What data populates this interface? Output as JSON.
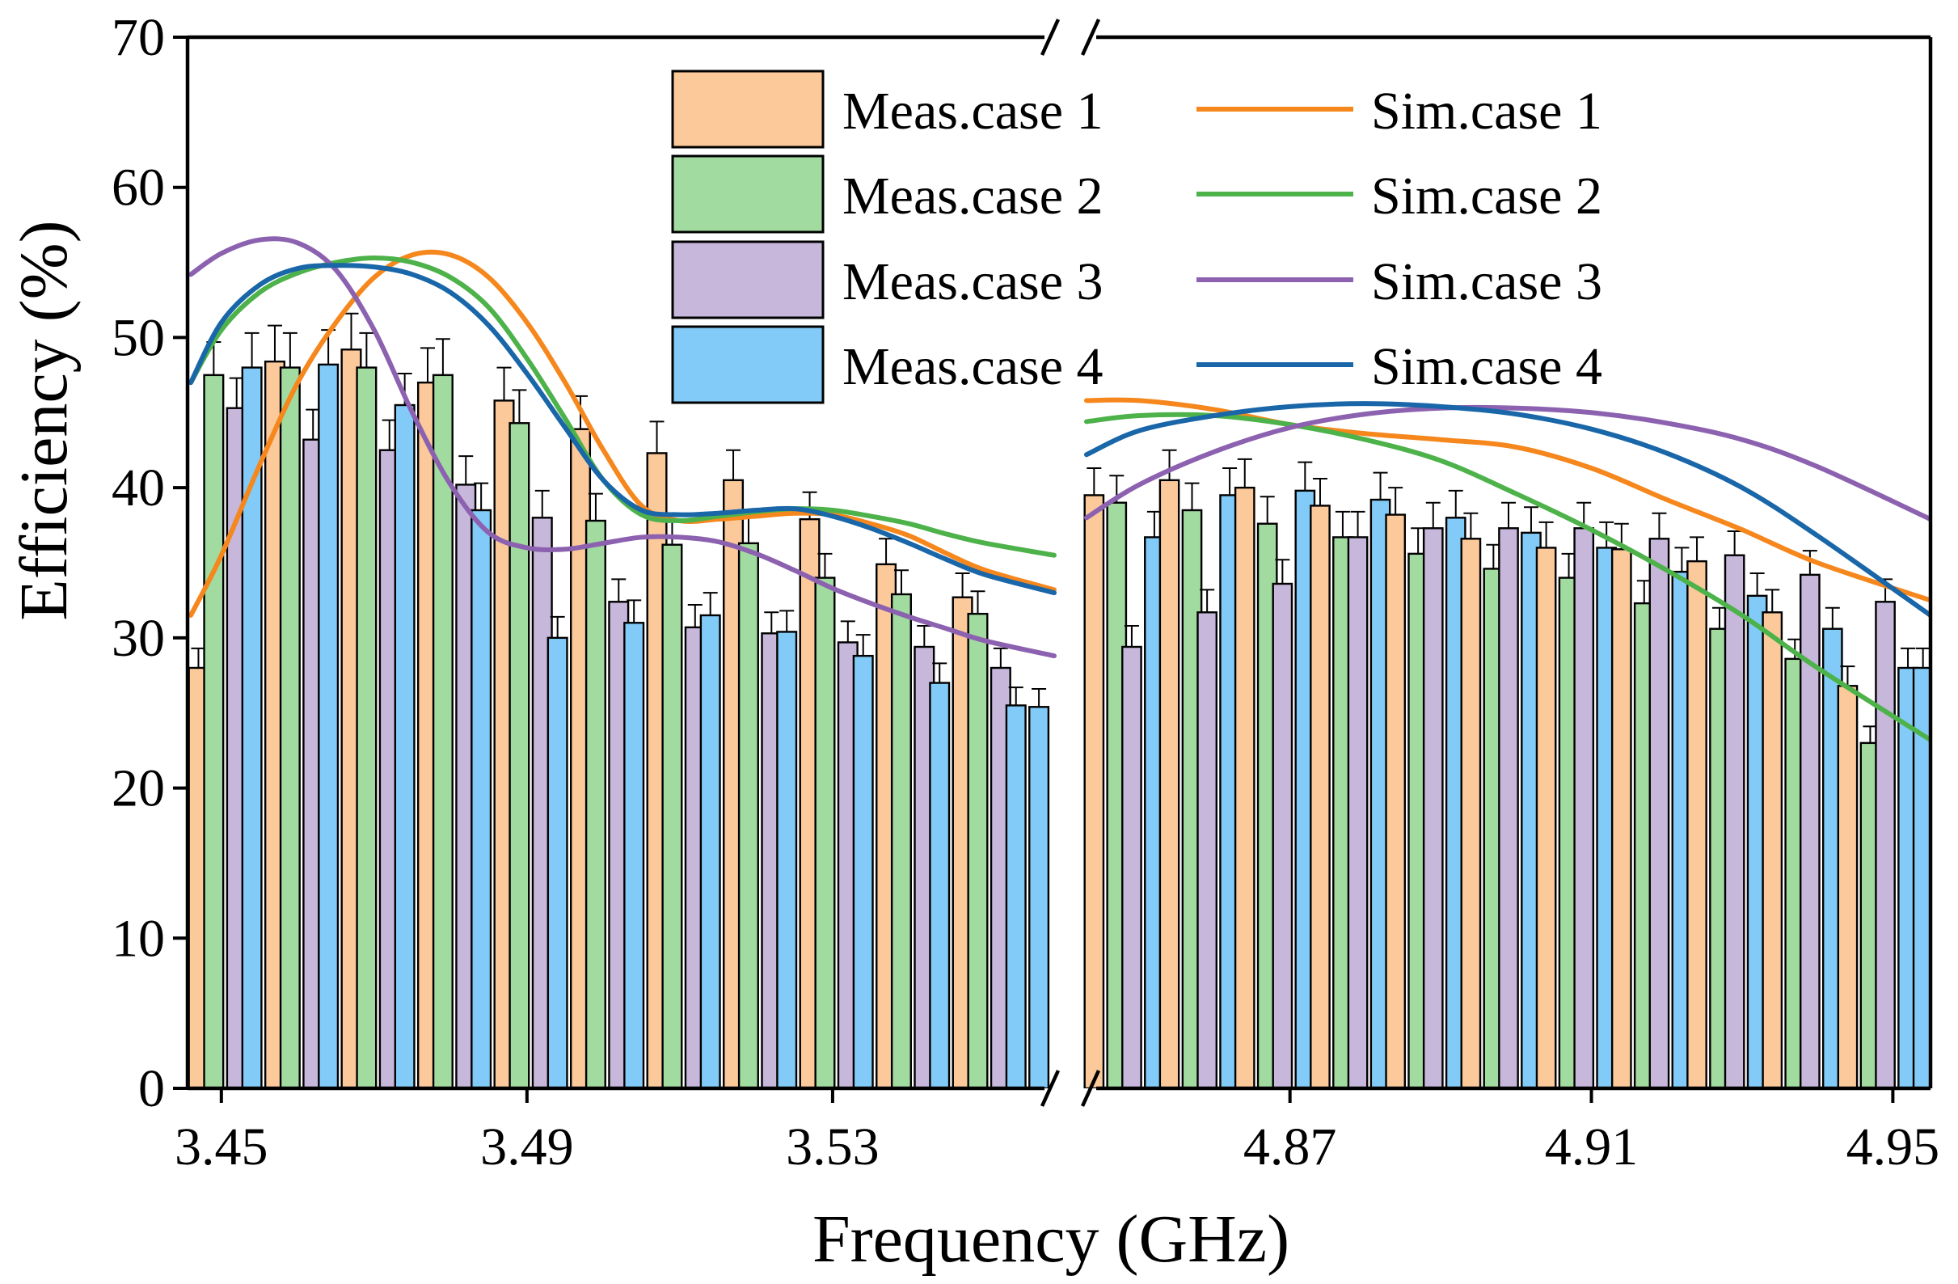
{
  "chart_data": {
    "type": "bar",
    "xlabel": "Frequency (GHz)",
    "ylabel": "Efficiency (%)",
    "ylim": [
      0,
      70
    ],
    "yticks": [
      0,
      10,
      20,
      30,
      40,
      50,
      60,
      70
    ],
    "ytick_labels": [
      "0",
      "10",
      "20",
      "30",
      "40",
      "50",
      "60",
      "70"
    ],
    "grid": false,
    "legend_position": "top-center",
    "axis_break": true,
    "panels": [
      {
        "name": "low-band",
        "xlim": [
          3.446,
          3.559
        ],
        "xticks": [
          3.45,
          3.49,
          3.53
        ],
        "xtick_labels": [
          "3.45",
          "3.49",
          "3.53"
        ],
        "bar_width": 0.0025,
        "bar_freqs": [
          3.447,
          3.449,
          3.452,
          3.454,
          3.457,
          3.459,
          3.462,
          3.464,
          3.467,
          3.469,
          3.472,
          3.474,
          3.477,
          3.479,
          3.482,
          3.484,
          3.487,
          3.489,
          3.492,
          3.494,
          3.497,
          3.499,
          3.502,
          3.504,
          3.507,
          3.509,
          3.512,
          3.514,
          3.517,
          3.519,
          3.522,
          3.524,
          3.527,
          3.529,
          3.532,
          3.534,
          3.537,
          3.539,
          3.542,
          3.544,
          3.547,
          3.549,
          3.552,
          3.554,
          3.557
        ],
        "bar_case": [
          1,
          2,
          3,
          4,
          1,
          2,
          3,
          4,
          1,
          2,
          3,
          4,
          1,
          2,
          3,
          4,
          1,
          2,
          3,
          4,
          1,
          2,
          3,
          4,
          1,
          2,
          3,
          4,
          1,
          2,
          3,
          4,
          1,
          2,
          3,
          4,
          1,
          2,
          3,
          4,
          1,
          2,
          3,
          4,
          4
        ],
        "bar_values": [
          28,
          47.5,
          45.3,
          48,
          48.4,
          48,
          43.2,
          48.2,
          49.2,
          48,
          42.5,
          45.5,
          47,
          47.5,
          40.2,
          38.5,
          45.8,
          44.3,
          38,
          30,
          43.9,
          37.8,
          32.4,
          31,
          42.3,
          36.2,
          30.7,
          31.5,
          40.5,
          36.3,
          30.3,
          30.4,
          37.9,
          34,
          29.7,
          28.8,
          34.9,
          32.9,
          29.4,
          27,
          32.7,
          31.6,
          28,
          25.5,
          25.4
        ],
        "error_bars": [
          1.3,
          2.2,
          2.0,
          2.3,
          2.4,
          2.3,
          2.0,
          2.3,
          2.4,
          2.3,
          2.0,
          2.1,
          2.3,
          2.4,
          1.9,
          1.8,
          2.2,
          2.2,
          1.8,
          1.4,
          2.2,
          1.8,
          1.5,
          1.5,
          2.1,
          1.7,
          1.5,
          1.5,
          2.0,
          1.7,
          1.4,
          1.4,
          1.8,
          1.6,
          1.4,
          1.4,
          1.7,
          1.6,
          1.4,
          1.3,
          1.6,
          1.5,
          1.3,
          1.2,
          1.2
        ],
        "sim_x": [
          3.446,
          3.45,
          3.455,
          3.46,
          3.465,
          3.47,
          3.475,
          3.48,
          3.485,
          3.49,
          3.495,
          3.5,
          3.505,
          3.51,
          3.515,
          3.52,
          3.525,
          3.53,
          3.535,
          3.54,
          3.545,
          3.55,
          3.559
        ],
        "sim_series": [
          {
            "case": 1,
            "values": [
              31.5,
              35.5,
              41.5,
              47,
              51,
              54,
              55.5,
              55.5,
              54,
              51,
              47,
              42.5,
              38.8,
              37.8,
              37.9,
              38.1,
              38.3,
              38.2,
              37.6,
              36.8,
              35.6,
              34.5,
              33.2
            ]
          },
          {
            "case": 2,
            "values": [
              47,
              50.5,
              53,
              54.3,
              55,
              55.3,
              55,
              54,
              52,
              48.6,
              44.6,
              40.5,
              38.2,
              37.8,
              38.1,
              38.4,
              38.6,
              38.5,
              38.1,
              37.6,
              36.9,
              36.3,
              35.5
            ]
          },
          {
            "case": 3,
            "values": [
              54.2,
              55.6,
              56.5,
              56.3,
              54.5,
              50.5,
              45,
              40.2,
              37,
              36,
              35.9,
              36.3,
              36.7,
              36.7,
              36.4,
              35.6,
              34.5,
              33.3,
              32.3,
              31.4,
              30.6,
              29.8,
              28.8
            ]
          },
          {
            "case": 4,
            "values": [
              47,
              51,
              53.5,
              54.6,
              54.8,
              54.7,
              54.2,
              53,
              50.8,
              47.6,
              44,
              40.5,
              38.5,
              38.2,
              38.3,
              38.5,
              38.6,
              38.1,
              37.3,
              36.3,
              35.2,
              34.2,
              33
            ]
          }
        ]
      },
      {
        "name": "high-band",
        "xlim": [
          4.843,
          4.955
        ],
        "xticks": [
          4.87,
          4.91,
          4.95
        ],
        "xtick_labels": [
          "4.87",
          "4.91",
          "4.95"
        ],
        "bar_width": 0.0025,
        "bar_freqs": [
          4.844,
          4.847,
          4.849,
          4.852,
          4.854,
          4.857,
          4.859,
          4.862,
          4.864,
          4.867,
          4.869,
          4.872,
          4.874,
          4.877,
          4.879,
          4.882,
          4.884,
          4.887,
          4.889,
          4.892,
          4.894,
          4.897,
          4.899,
          4.902,
          4.904,
          4.907,
          4.909,
          4.912,
          4.914,
          4.917,
          4.919,
          4.922,
          4.924,
          4.927,
          4.929,
          4.932,
          4.934,
          4.937,
          4.939,
          4.942,
          4.944,
          4.947,
          4.949,
          4.952,
          4.954
        ],
        "bar_case": [
          1,
          2,
          3,
          4,
          1,
          2,
          3,
          4,
          1,
          2,
          3,
          4,
          1,
          2,
          3,
          4,
          1,
          2,
          3,
          4,
          1,
          2,
          3,
          4,
          1,
          2,
          3,
          4,
          1,
          2,
          3,
          4,
          1,
          2,
          3,
          4,
          1,
          2,
          3,
          4,
          1,
          2,
          3,
          4,
          4
        ],
        "bar_values": [
          39.5,
          39,
          29.4,
          36.7,
          40.5,
          38.5,
          31.7,
          39.5,
          40,
          37.6,
          33.6,
          39.8,
          38.8,
          36.7,
          36.7,
          39.2,
          38.2,
          35.6,
          37.3,
          38,
          36.6,
          34.6,
          37.3,
          37,
          36,
          34,
          37.3,
          36,
          35.9,
          32.3,
          36.6,
          34.4,
          35.1,
          30.6,
          35.5,
          32.8,
          31.7,
          28.6,
          34.2,
          30.6,
          26.8,
          23,
          32.4,
          28,
          28
        ],
        "error_bars": [
          1.8,
          1.8,
          1.4,
          1.7,
          2.0,
          1.8,
          1.5,
          1.8,
          1.9,
          1.8,
          1.6,
          1.9,
          1.8,
          1.7,
          1.7,
          1.8,
          1.8,
          1.7,
          1.7,
          1.8,
          1.7,
          1.6,
          1.7,
          1.7,
          1.7,
          1.6,
          1.7,
          1.7,
          1.7,
          1.5,
          1.7,
          1.6,
          1.6,
          1.4,
          1.6,
          1.5,
          1.5,
          1.3,
          1.6,
          1.4,
          1.3,
          1.1,
          1.5,
          1.3,
          1.3
        ],
        "sim_x": [
          4.843,
          4.85,
          4.86,
          4.87,
          4.88,
          4.89,
          4.9,
          4.91,
          4.92,
          4.93,
          4.94,
          4.955
        ],
        "sim_series": [
          {
            "case": 1,
            "values": [
              45.8,
              45.8,
              45.2,
              44.2,
              43.6,
              43.2,
              42.7,
              41.3,
              39.2,
              37.2,
              35,
              32.5
            ]
          },
          {
            "case": 2,
            "values": [
              44.4,
              44.8,
              44.8,
              44.2,
              43.2,
              41.8,
              39.6,
              37.2,
              34.5,
              31.5,
              28,
              23.2
            ]
          },
          {
            "case": 3,
            "values": [
              38,
              40.2,
              42.4,
              44,
              44.9,
              45.3,
              45.3,
              45,
              44.3,
              43.2,
              41.4,
              37.9
            ]
          },
          {
            "case": 4,
            "values": [
              42.2,
              43.8,
              44.8,
              45.4,
              45.6,
              45.4,
              44.9,
              43.9,
              42.3,
              40,
              36.8,
              31.5
            ]
          }
        ]
      }
    ],
    "series_colors": {
      "meas_fill": {
        "1": "#fbc99a",
        "2": "#a2dba0",
        "3": "#c6b7db",
        "4": "#82cbf8"
      },
      "sim_line": {
        "1": "#f5871d",
        "2": "#4db24a",
        "3": "#8c62b0",
        "4": "#1966a8"
      }
    },
    "legend": [
      {
        "kind": "bar",
        "case": 1,
        "label": "Meas.case 1"
      },
      {
        "kind": "line",
        "case": 1,
        "label": "Sim.case 1"
      },
      {
        "kind": "bar",
        "case": 2,
        "label": "Meas.case 2"
      },
      {
        "kind": "line",
        "case": 2,
        "label": "Sim.case 2"
      },
      {
        "kind": "bar",
        "case": 3,
        "label": "Meas.case 3"
      },
      {
        "kind": "line",
        "case": 3,
        "label": "Sim.case 3"
      },
      {
        "kind": "bar",
        "case": 4,
        "label": "Meas.case 4"
      },
      {
        "kind": "line",
        "case": 4,
        "label": "Sim.case 4"
      }
    ]
  }
}
